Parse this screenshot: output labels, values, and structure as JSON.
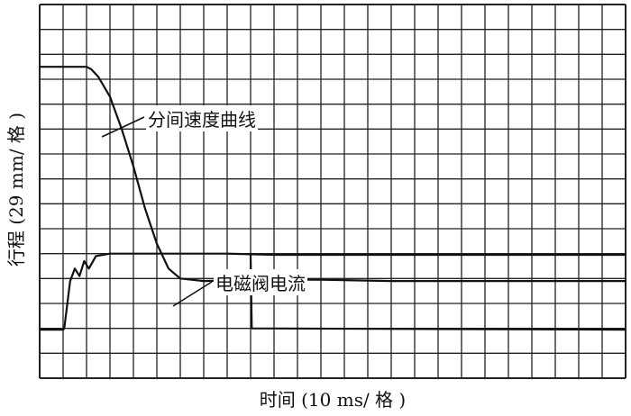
{
  "chart_data": {
    "type": "line",
    "title": "",
    "xlabel": "时间 (10 ms/ 格 )",
    "ylabel": "行程 (29 mm/ 格 )",
    "grid": true,
    "grid_divisions": {
      "x": 25,
      "y": 15
    },
    "xlim": [
      0,
      25
    ],
    "ylim": [
      0,
      15
    ],
    "annotations": [
      {
        "text": "分间速度曲线",
        "target_series": "s1"
      },
      {
        "text": "电磁阀电流",
        "target_series": "s2"
      }
    ],
    "series": [
      {
        "id": "s1",
        "color": "#111111",
        "x": [
          0,
          2.0,
          2.2,
          2.5,
          3.0,
          3.5,
          4.0,
          4.5,
          5.0,
          5.5,
          6.0,
          7.0,
          9,
          12,
          15,
          18,
          21,
          25
        ],
        "y": [
          12.5,
          12.5,
          12.4,
          12.1,
          11.3,
          10.0,
          8.5,
          6.8,
          5.4,
          4.4,
          4.0,
          3.9,
          3.95,
          3.95,
          3.9,
          3.9,
          3.9,
          3.9
        ]
      },
      {
        "id": "s2",
        "color": "#111111",
        "x": [
          0,
          1.0,
          1.05,
          1.3,
          1.5,
          1.7,
          1.9,
          2.1,
          2.4,
          3.0,
          5,
          8,
          10,
          12,
          15,
          18,
          21,
          25
        ],
        "y": [
          1.95,
          1.95,
          2.0,
          3.9,
          4.4,
          4.1,
          4.7,
          4.4,
          4.9,
          5.0,
          5.0,
          5.0,
          4.95,
          4.95,
          4.95,
          4.95,
          4.95,
          4.95
        ]
      },
      {
        "id": "s3",
        "color": "#111111",
        "x": [
          9.0,
          9.05,
          25
        ],
        "y": [
          4.95,
          2.0,
          1.95
        ]
      }
    ]
  }
}
